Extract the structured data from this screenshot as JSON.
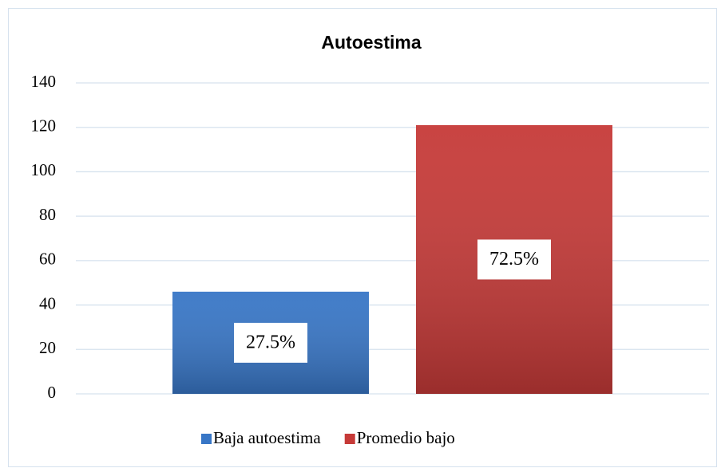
{
  "chart_data": {
    "type": "bar",
    "title": "Autoestima",
    "categories": [
      null
    ],
    "series": [
      {
        "name": "Baja autoestima",
        "color": "#3876c6",
        "values": [
          46
        ]
      },
      {
        "name": "Promedio bajo",
        "color": "#c63a38",
        "values": [
          121
        ]
      }
    ],
    "annotations": [
      "27.5%",
      "72.5%"
    ],
    "ylim": [
      0,
      140
    ],
    "yticks": [
      0,
      20,
      40,
      60,
      80,
      100,
      120,
      140
    ],
    "grid": true,
    "legend": "bottom"
  }
}
